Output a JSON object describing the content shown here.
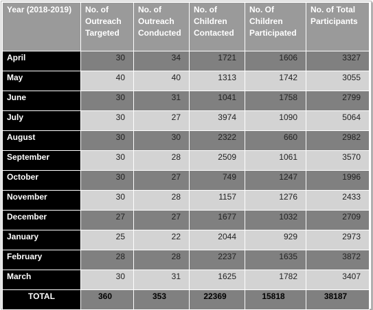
{
  "table": {
    "header": [
      "Year (2018-2019)",
      "No. of Outreach Targeted",
      "No. of Outreach Conducted",
      "No. of Children Contacted",
      "No. Of Children Participated",
      "No. of Total Participants"
    ],
    "rows": [
      [
        "April",
        "30",
        "34",
        "1721",
        "1606",
        "3327"
      ],
      [
        "May",
        "40",
        "40",
        "1313",
        "1742",
        "3055"
      ],
      [
        "June",
        "30",
        "31",
        "1041",
        "1758",
        "2799"
      ],
      [
        "July",
        "30",
        "27",
        "3974",
        "1090",
        "5064"
      ],
      [
        "August",
        "30",
        "30",
        "2322",
        "660",
        "2982"
      ],
      [
        "September",
        "30",
        "28",
        "2509",
        "1061",
        "3570"
      ],
      [
        "October",
        "30",
        "27",
        "749",
        "1247",
        "1996"
      ],
      [
        "November",
        "30",
        "28",
        "1157",
        "1276",
        "2433"
      ],
      [
        "December",
        "27",
        "27",
        "1677",
        "1032",
        "2709"
      ],
      [
        "January",
        "25",
        "22",
        "2044",
        "929",
        "2973"
      ],
      [
        "February",
        "28",
        "28",
        "2237",
        "1635",
        "3872"
      ],
      [
        "March",
        "30",
        "31",
        "1625",
        "1782",
        "3407"
      ]
    ],
    "total": [
      "TOTAL",
      "360",
      "353",
      "22369",
      "15818",
      "38187"
    ]
  }
}
